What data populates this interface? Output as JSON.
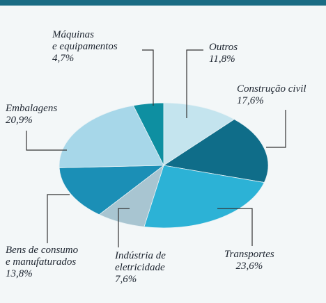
{
  "chart_data": {
    "type": "pie",
    "categories": [
      "Máquinas\ne equipamentos",
      "Outros",
      "Construção civil",
      "Transportes",
      "Indústria de\neletricidade",
      "Bens de consumo\ne manufaturados",
      "Embalagens"
    ],
    "values": [
      4.7,
      11.8,
      17.6,
      23.6,
      7.6,
      13.8,
      20.9
    ],
    "value_labels": [
      "4,7%",
      "11,8%",
      "17,6%",
      "23,6%",
      "7,6%",
      "13,8%",
      "20,9%"
    ],
    "colors": [
      "#0e8fa1",
      "#c4e4ee",
      "#0f6d89",
      "#2cb2d6",
      "#a8c5d1",
      "#1b8fb6",
      "#a7d7e9"
    ]
  }
}
